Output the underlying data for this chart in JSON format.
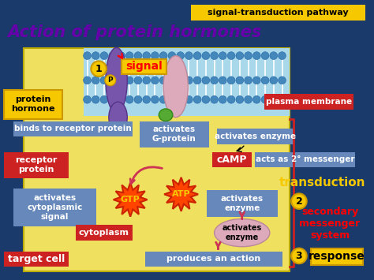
{
  "title": "Action of protein hormones",
  "bg_color": "#1a3a6b",
  "labels": {
    "subtitle": "signal-transduction pathway",
    "signal": "signal",
    "protein_hormone": "protein\nhormone",
    "binds_to": "binds to receptor protein",
    "activates_g": "activates\nG-protein",
    "activates_enzyme_top": "activates enzyme",
    "cAMP": "cAMP",
    "acts_as": "acts as 2° messenger",
    "receptor_protein": "receptor\nprotein",
    "activates_cyto": "activates\ncytoplasmic\nsignal",
    "GTP": "GTP",
    "ATP": "ATP",
    "activates_enzyme_mid": "activates\nenzyme",
    "activates_enzyme_bot": "activates\nenzyme",
    "cytoplasm": "cytoplasm",
    "produces": "produces an action",
    "target_cell": "target cell",
    "plasma_membrane": "plasma membrane",
    "transduction": "transduction",
    "secondary": "secondary\nmessenger\nsystem",
    "response": "response",
    "num1": "1",
    "num2": "2",
    "num3": "3",
    "P": "P"
  }
}
